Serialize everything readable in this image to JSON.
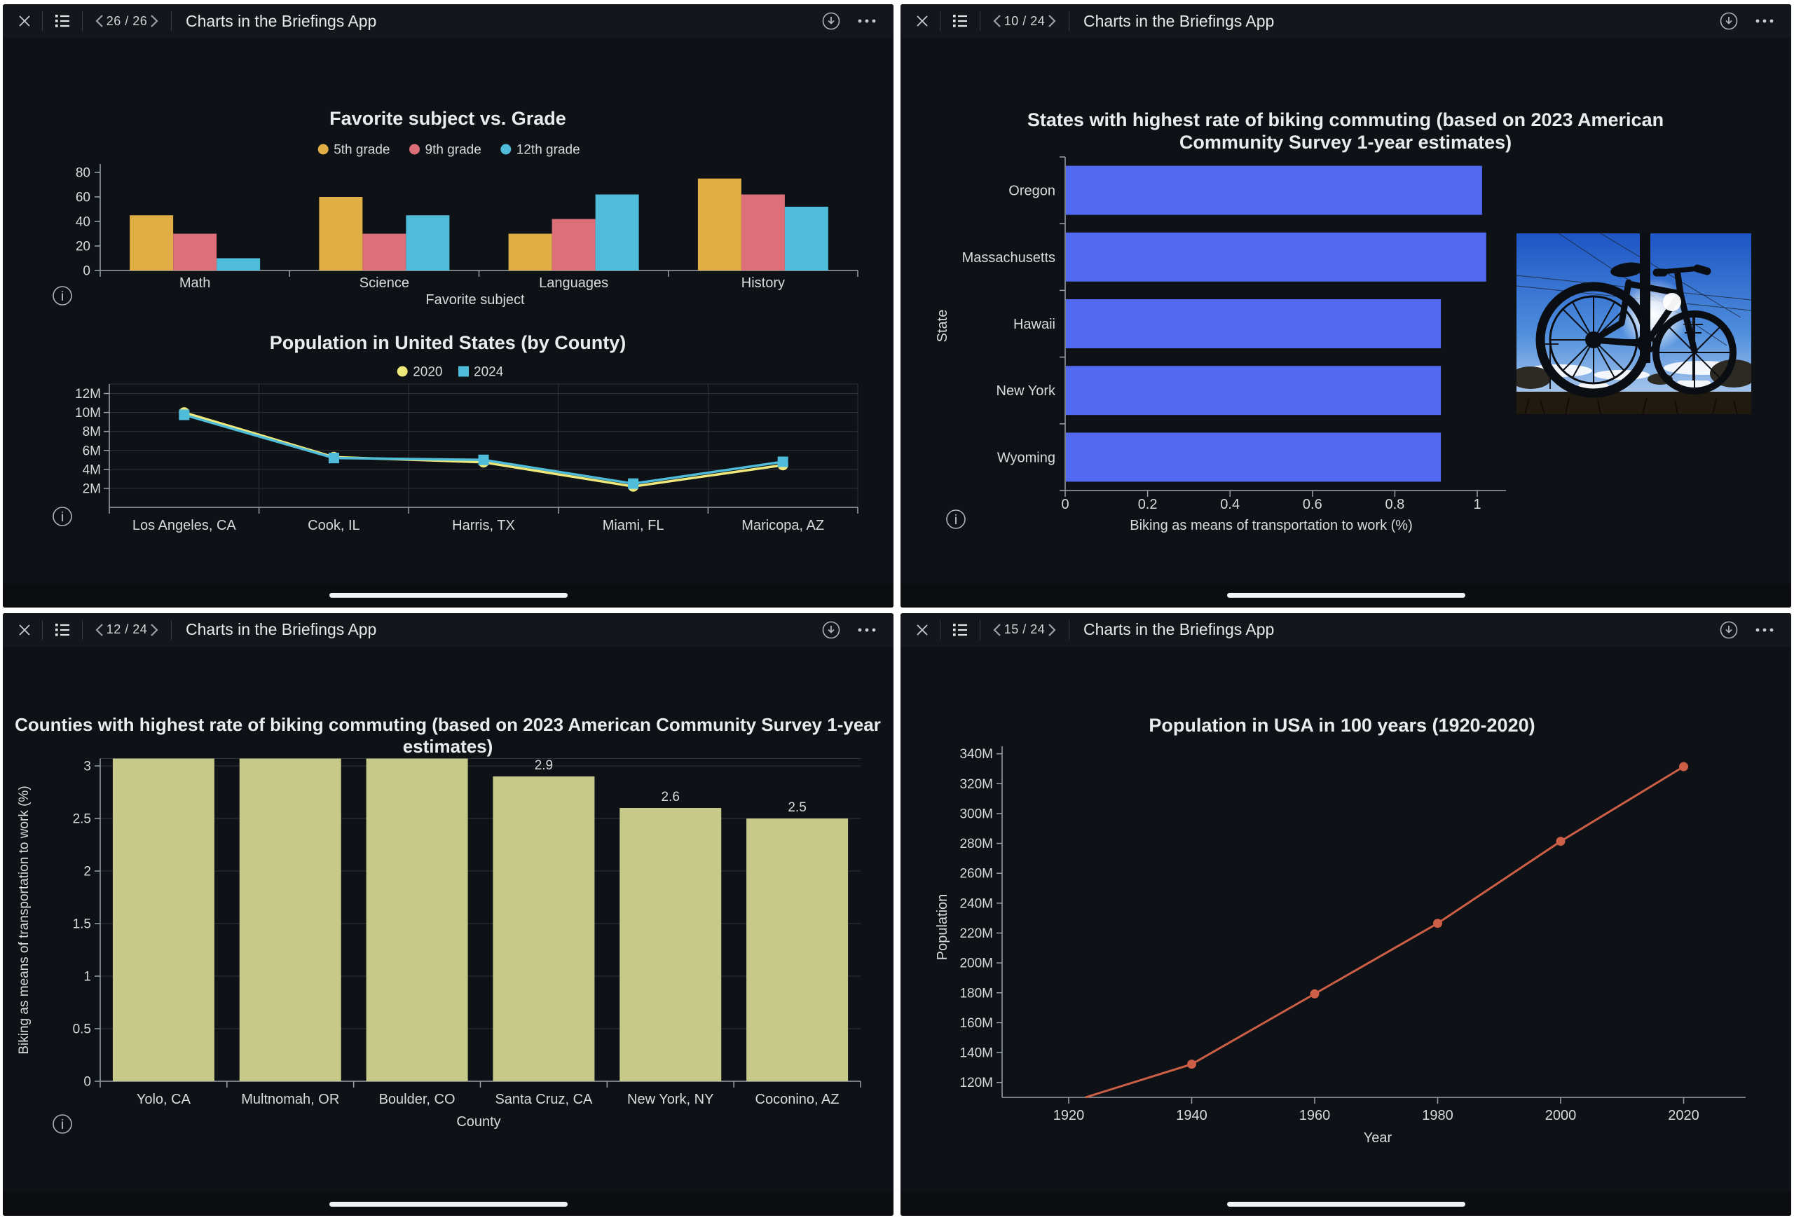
{
  "app": {
    "title": "Charts in the Briefings App"
  },
  "panels": [
    {
      "page": "26 / 26",
      "title": "Charts in the Briefings App"
    },
    {
      "page": "10 / 24",
      "title": "Charts in the Briefings App"
    },
    {
      "page": "12 / 24",
      "title": "Charts in the Briefings App"
    },
    {
      "page": "15 / 24",
      "title": "Charts in the Briefings App"
    }
  ],
  "image": {
    "alt": "Photo of a bicycle silhouetted against a blue sky with sun flare"
  },
  "chart_data": [
    {
      "type": "bar",
      "panel": 0,
      "title": "Favorite subject vs. Grade",
      "categories": [
        "Math",
        "Science",
        "Languages",
        "History"
      ],
      "series": [
        {
          "name": "5th grade",
          "color": "#dfae45",
          "values": [
            45,
            60,
            30,
            75
          ]
        },
        {
          "name": "9th grade",
          "color": "#dd6f79",
          "values": [
            30,
            30,
            42,
            62
          ]
        },
        {
          "name": "12th grade",
          "color": "#4fbcd9",
          "values": [
            10,
            45,
            62,
            52
          ]
        }
      ],
      "xlabel": "Favorite subject",
      "ylabel": "",
      "ylim": [
        0,
        80
      ],
      "yticks": [
        0,
        20,
        40,
        60,
        80
      ],
      "legend_position": "top",
      "grid": false
    },
    {
      "type": "line",
      "panel": 0,
      "title": "Population in United States (by County)",
      "categories": [
        "Los Angeles, CA",
        "Cook, IL",
        "Harris, TX",
        "Miami, FL",
        "Maricopa, AZ"
      ],
      "series": [
        {
          "name": "2020",
          "color": "#efe97c",
          "marker": "circle",
          "values": [
            10.0,
            5.3,
            4.75,
            2.2,
            4.45
          ]
        },
        {
          "name": "2024",
          "color": "#4fbcd9",
          "marker": "square",
          "values": [
            9.75,
            5.2,
            5.0,
            2.5,
            4.8
          ]
        }
      ],
      "ylim": [
        0,
        13
      ],
      "yticks": [
        2,
        4,
        6,
        8,
        10,
        12
      ],
      "ytick_suffix": "M",
      "legend_position": "top",
      "grid": true
    },
    {
      "type": "bar-horizontal",
      "panel": 1,
      "title_lines": [
        "States with highest rate of biking commuting (based on 2023 American",
        "Community Survey 1-year estimates)"
      ],
      "title": "States with highest rate of biking commuting (based on 2023 American Community Survey 1-year estimates)",
      "categories": [
        "Oregon",
        "Massachusetts",
        "Hawaii",
        "New York",
        "Wyoming"
      ],
      "values": [
        1.01,
        1.02,
        0.91,
        0.91,
        0.91
      ],
      "color": "#5269f1",
      "xlabel": "Biking as means of transportation to work (%)",
      "ylabel": "State",
      "xlim": [
        0,
        1.07
      ],
      "xticks": [
        0,
        0.2,
        0.4,
        0.6,
        0.8,
        1
      ],
      "grid": false
    },
    {
      "type": "bar",
      "panel": 2,
      "title_lines": [
        "Counties with highest rate of biking commuting (based on 2023 American Community Survey 1-year",
        "estimates)"
      ],
      "title": "Counties with highest rate of biking commuting (based on 2023 American Community Survey 1-year estimates)",
      "categories": [
        "Yolo, CA",
        "Multnomah, OR",
        "Boulder, CO",
        "Santa Cruz, CA",
        "New York, NY",
        "Coconino, AZ"
      ],
      "values": [
        3.3,
        3.25,
        3.2,
        2.9,
        2.6,
        2.5
      ],
      "data_labels": [
        null,
        null,
        null,
        "2.9",
        "2.6",
        "2.5"
      ],
      "color": "#c7c98b",
      "xlabel": "County",
      "ylabel": "Biking as means of transportation to work (%)",
      "ylim": [
        0,
        3.07
      ],
      "yticks": [
        0,
        0.5,
        1,
        1.5,
        2,
        2.5,
        3
      ],
      "grid": true,
      "clipped_note": "first three bars exceed axis max and are clipped at top"
    },
    {
      "type": "line",
      "panel": 3,
      "title": "Population in USA in 100 years (1920-2020)",
      "x": [
        1920,
        1940,
        1960,
        1980,
        2000,
        2020
      ],
      "y": [
        106.5,
        132.2,
        179.3,
        226.5,
        281.4,
        331.4
      ],
      "color": "#cd5f47",
      "xlabel": "Year",
      "ylabel": "Population",
      "ylim": [
        110,
        345
      ],
      "yticks": [
        120,
        140,
        160,
        180,
        200,
        220,
        240,
        260,
        280,
        300,
        320,
        340
      ],
      "ytick_suffix": "M",
      "xticks": [
        1920,
        1940,
        1960,
        1980,
        2000,
        2020
      ],
      "grid": false
    }
  ]
}
